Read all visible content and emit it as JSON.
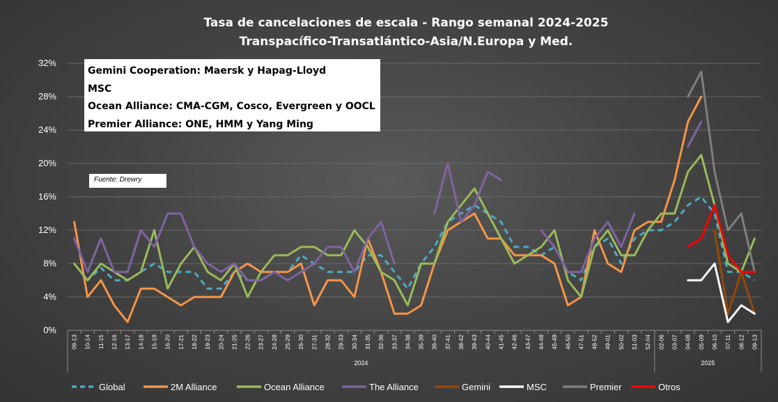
{
  "chart_data": {
    "type": "line",
    "title": "Tasa de cancelaciones de escala - Rango semanal 2024-2025",
    "subtitle": "Transpacífico-Transatlántico-Asia/N.Europa  y Med.",
    "ylim": [
      0,
      32
    ],
    "yticks": [
      "0%",
      "4%",
      "8%",
      "12%",
      "16%",
      "20%",
      "24%",
      "28%",
      "32%"
    ],
    "grid": true,
    "legend_position": "bottom",
    "categories": [
      "09-13",
      "10-14",
      "11-15",
      "12-16",
      "13-17",
      "14-18",
      "15-19",
      "16-20",
      "17-21",
      "18-22",
      "19-23",
      "20-24",
      "21-25",
      "22-26",
      "23-27",
      "24-28",
      "25-29",
      "26-30",
      "27-31",
      "28-32",
      "29-33",
      "30-34",
      "31-35",
      "32-36",
      "33-37",
      "34-38",
      "35-39",
      "36-40",
      "37-41",
      "38-42",
      "39-43",
      "40-44",
      "41-45",
      "42-46",
      "43-47",
      "44-48",
      "45-49",
      "46-50",
      "47-51",
      "48-52",
      "49-01",
      "50-02",
      "51-03",
      "52-04",
      "02-06",
      "03-07",
      "04-08",
      "05-09",
      "06-10",
      "07-11",
      "08-12",
      "09-13"
    ],
    "year_groups": [
      {
        "label": "2024",
        "from": 0,
        "to": 43
      },
      {
        "label": "2025",
        "from": 44,
        "to": 51
      }
    ],
    "series": [
      {
        "name": "Global",
        "color": "#4bacc6",
        "dashed": true,
        "values": [
          8,
          6,
          7.5,
          6,
          6,
          7,
          8,
          7,
          7,
          7,
          5,
          5,
          7,
          6,
          6,
          7,
          7,
          9,
          8,
          7,
          7,
          7,
          9,
          9,
          7,
          5,
          8,
          10,
          13,
          14,
          15,
          14,
          13,
          10,
          10,
          9,
          10,
          7,
          6,
          10,
          11,
          8,
          11,
          12,
          12,
          13,
          15,
          16,
          14,
          7,
          7,
          6
        ]
      },
      {
        "name": "2M Alliance",
        "color": "#f79646",
        "values": [
          13,
          4,
          6,
          3,
          1,
          5,
          5,
          4,
          3,
          4,
          4,
          4,
          7,
          8,
          7,
          7,
          7,
          8,
          3,
          6,
          6,
          4,
          11,
          7,
          2,
          2,
          3,
          8,
          12,
          13,
          14,
          11,
          11,
          9,
          9,
          9,
          8,
          3,
          4,
          12,
          8,
          7,
          12,
          13,
          13,
          18,
          25,
          28,
          null,
          null,
          null,
          null
        ]
      },
      {
        "name": "Ocean Alliance",
        "color": "#9bbb59",
        "values": [
          8,
          6,
          8,
          7,
          6,
          7,
          12,
          5,
          8,
          10,
          7,
          6,
          8,
          4,
          7,
          9,
          9,
          10,
          10,
          9,
          9,
          12,
          10,
          7,
          6,
          3,
          8,
          8,
          13,
          15,
          17,
          14,
          11,
          8,
          9,
          10,
          12,
          6,
          4,
          10,
          12,
          9,
          9,
          12,
          14,
          14,
          19,
          21,
          15,
          8,
          7,
          11
        ]
      },
      {
        "name": "The Alliance",
        "color": "#8064a2",
        "values": [
          11,
          7,
          11,
          7,
          7,
          12,
          10,
          14,
          14,
          10,
          8,
          7,
          8,
          6,
          6,
          7,
          6,
          7,
          8,
          10,
          10,
          7,
          11,
          13,
          8,
          null,
          null,
          14,
          20,
          13,
          15,
          19,
          18,
          null,
          null,
          12,
          10,
          7,
          7,
          11,
          13,
          10,
          14,
          null,
          null,
          null,
          22,
          25,
          null,
          null,
          null,
          null
        ]
      },
      {
        "name": "Gemini",
        "color": "#984807",
        "values": [
          null,
          null,
          null,
          null,
          null,
          null,
          null,
          null,
          null,
          null,
          null,
          null,
          null,
          null,
          null,
          null,
          null,
          null,
          null,
          null,
          null,
          null,
          null,
          null,
          null,
          null,
          null,
          null,
          null,
          null,
          null,
          null,
          null,
          null,
          null,
          null,
          null,
          null,
          null,
          null,
          null,
          null,
          null,
          null,
          null,
          null,
          null,
          null,
          12,
          2,
          7,
          2
        ]
      },
      {
        "name": "MSC",
        "color": "#ffffff",
        "values": [
          null,
          null,
          null,
          null,
          null,
          null,
          null,
          null,
          null,
          null,
          null,
          null,
          null,
          null,
          null,
          null,
          null,
          null,
          null,
          null,
          null,
          null,
          null,
          null,
          null,
          null,
          null,
          null,
          null,
          null,
          null,
          null,
          null,
          null,
          null,
          null,
          null,
          null,
          null,
          null,
          null,
          null,
          null,
          null,
          null,
          null,
          6,
          6,
          8,
          1,
          3,
          2
        ]
      },
      {
        "name": "Premier",
        "color": "#7f7f7f",
        "values": [
          null,
          null,
          null,
          null,
          null,
          null,
          null,
          null,
          null,
          null,
          null,
          null,
          null,
          null,
          null,
          null,
          null,
          null,
          null,
          null,
          null,
          null,
          null,
          null,
          null,
          null,
          null,
          null,
          null,
          null,
          null,
          null,
          null,
          null,
          null,
          null,
          null,
          null,
          null,
          null,
          null,
          null,
          null,
          null,
          null,
          null,
          28,
          31,
          19,
          12,
          14,
          7
        ]
      },
      {
        "name": "Otros",
        "color": "#ff0000",
        "values": [
          null,
          null,
          null,
          null,
          null,
          null,
          null,
          null,
          null,
          null,
          null,
          null,
          null,
          null,
          null,
          null,
          null,
          null,
          null,
          null,
          null,
          null,
          null,
          null,
          null,
          null,
          null,
          null,
          null,
          null,
          null,
          null,
          null,
          null,
          null,
          null,
          null,
          null,
          null,
          null,
          null,
          null,
          null,
          null,
          null,
          null,
          10,
          11,
          15,
          9,
          7,
          7
        ]
      }
    ]
  },
  "notes": {
    "lines": [
      "Gemini Cooperation: Maersk y Hapag-Lloyd",
      "MSC",
      "Ocean Alliance: CMA-CGM, Cosco, Evergreen y OOCL",
      "Premier Alliance: ONE, HMM y Yang Ming"
    ],
    "source": "Fuente: Drewry"
  }
}
